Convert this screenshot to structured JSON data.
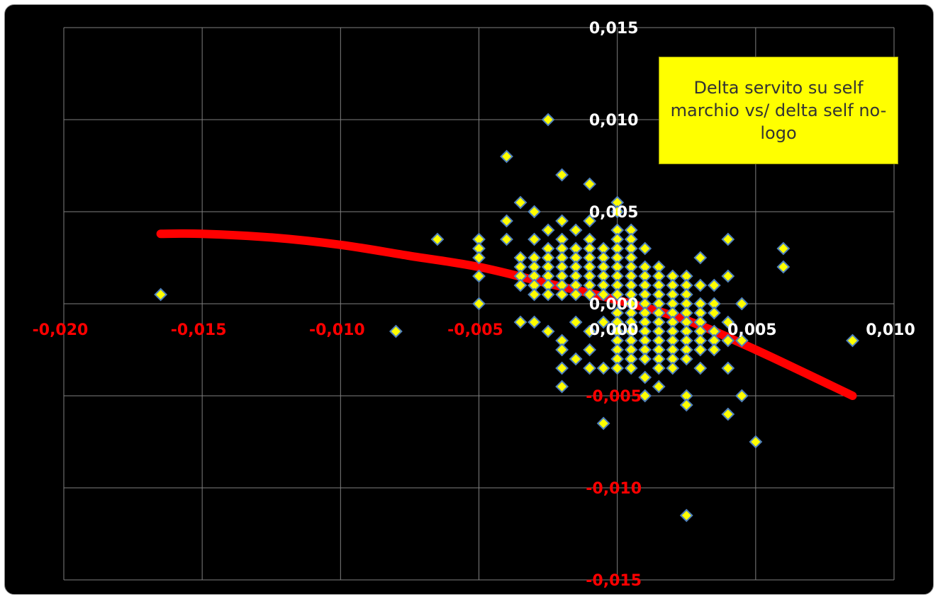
{
  "chart_data": {
    "type": "scatter",
    "title": "",
    "xlabel": "",
    "ylabel": "",
    "xlim": [
      -0.02,
      0.01
    ],
    "ylim": [
      -0.015,
      0.015
    ],
    "grid": true,
    "x_ticks": [
      -0.02,
      -0.015,
      -0.01,
      -0.005,
      0.0,
      0.005,
      0.01
    ],
    "x_tick_labels": [
      "-0,020",
      "-0,015",
      "-0,010",
      "-0,005",
      "0,000",
      "0,005",
      "0,010"
    ],
    "y_ticks": [
      0.015,
      0.01,
      0.005,
      0.0,
      -0.005,
      -0.01,
      -0.015
    ],
    "y_tick_labels": [
      "0,015",
      "0,010",
      "0,005",
      "0,000",
      "-0,005",
      "-0,010",
      "-0,015"
    ],
    "annotation": "Delta servito su self marchio vs/ delta self no-logo",
    "colors": {
      "background": "#000000",
      "grid": "#7f7f7f",
      "marker_fill": "#ffff00",
      "marker_edge": "#4f81bd",
      "trend": "#ff0000",
      "x_tick_positive": "#ffffff",
      "x_tick_negative": "#ff0000",
      "y_tick_positive": "#ffffff",
      "y_tick_negative": "#ff0000",
      "annotation_bg": "#ffff00"
    },
    "trendline": {
      "type": "polynomial",
      "points": [
        [
          -0.0165,
          0.0038
        ],
        [
          -0.015,
          0.0038
        ],
        [
          -0.0125,
          0.0036
        ],
        [
          -0.01,
          0.0032
        ],
        [
          -0.0075,
          0.0026
        ],
        [
          -0.005,
          0.002
        ],
        [
          -0.0025,
          0.0011
        ],
        [
          0.0,
          0.0002
        ],
        [
          0.0025,
          -0.0009
        ],
        [
          0.005,
          -0.0025
        ],
        [
          0.0085,
          -0.005
        ]
      ]
    },
    "points": [
      [
        -0.0165,
        0.0005
      ],
      [
        -0.008,
        -0.0015
      ],
      [
        -0.0065,
        0.0035
      ],
      [
        -0.005,
        0.0035
      ],
      [
        -0.005,
        0.003
      ],
      [
        -0.005,
        0.0025
      ],
      [
        -0.005,
        0.0015
      ],
      [
        -0.005,
        0.0
      ],
      [
        -0.004,
        0.008
      ],
      [
        -0.004,
        0.0045
      ],
      [
        -0.004,
        0.0035
      ],
      [
        -0.0035,
        0.0055
      ],
      [
        -0.0035,
        0.0025
      ],
      [
        -0.0035,
        0.002
      ],
      [
        -0.0035,
        0.0015
      ],
      [
        -0.0035,
        0.001
      ],
      [
        -0.0035,
        -0.001
      ],
      [
        -0.003,
        0.005
      ],
      [
        -0.003,
        0.0035
      ],
      [
        -0.003,
        0.0025
      ],
      [
        -0.003,
        0.002
      ],
      [
        -0.003,
        0.0015
      ],
      [
        -0.003,
        0.001
      ],
      [
        -0.003,
        0.0005
      ],
      [
        -0.003,
        -0.001
      ],
      [
        -0.0025,
        0.01
      ],
      [
        -0.0025,
        0.004
      ],
      [
        -0.0025,
        0.003
      ],
      [
        -0.0025,
        0.0025
      ],
      [
        -0.0025,
        0.002
      ],
      [
        -0.0025,
        0.0015
      ],
      [
        -0.0025,
        0.001
      ],
      [
        -0.0025,
        0.0005
      ],
      [
        -0.0025,
        -0.0015
      ],
      [
        -0.002,
        0.007
      ],
      [
        -0.002,
        0.0045
      ],
      [
        -0.002,
        0.0035
      ],
      [
        -0.002,
        0.003
      ],
      [
        -0.002,
        0.0025
      ],
      [
        -0.002,
        0.002
      ],
      [
        -0.002,
        0.0015
      ],
      [
        -0.002,
        0.001
      ],
      [
        -0.002,
        0.0005
      ],
      [
        -0.002,
        -0.002
      ],
      [
        -0.002,
        -0.0025
      ],
      [
        -0.002,
        -0.0035
      ],
      [
        -0.002,
        -0.0045
      ],
      [
        -0.0015,
        0.004
      ],
      [
        -0.0015,
        0.003
      ],
      [
        -0.0015,
        0.0025
      ],
      [
        -0.0015,
        0.002
      ],
      [
        -0.0015,
        0.0015
      ],
      [
        -0.0015,
        0.001
      ],
      [
        -0.0015,
        0.0005
      ],
      [
        -0.0015,
        -0.001
      ],
      [
        -0.0015,
        -0.003
      ],
      [
        -0.001,
        0.0065
      ],
      [
        -0.001,
        0.0045
      ],
      [
        -0.001,
        0.0035
      ],
      [
        -0.001,
        0.003
      ],
      [
        -0.001,
        0.0025
      ],
      [
        -0.001,
        0.002
      ],
      [
        -0.001,
        0.0015
      ],
      [
        -0.001,
        0.001
      ],
      [
        -0.001,
        0.0005
      ],
      [
        -0.001,
        -0.0015
      ],
      [
        -0.001,
        -0.0025
      ],
      [
        -0.001,
        -0.0035
      ],
      [
        -0.0005,
        0.003
      ],
      [
        -0.0005,
        0.0025
      ],
      [
        -0.0005,
        0.002
      ],
      [
        -0.0005,
        0.0015
      ],
      [
        -0.0005,
        0.001
      ],
      [
        -0.0005,
        0.0005
      ],
      [
        -0.0005,
        -0.001
      ],
      [
        -0.0005,
        -0.0035
      ],
      [
        -0.0005,
        -0.0065
      ],
      [
        0.0,
        0.0055
      ],
      [
        0.0,
        0.005
      ],
      [
        0.0,
        0.004
      ],
      [
        0.0,
        0.0035
      ],
      [
        0.0,
        0.003
      ],
      [
        0.0,
        0.0025
      ],
      [
        0.0,
        0.002
      ],
      [
        0.0,
        0.0015
      ],
      [
        0.0,
        0.001
      ],
      [
        0.0,
        0.0005
      ],
      [
        0.0,
        -0.0005
      ],
      [
        0.0,
        -0.001
      ],
      [
        0.0,
        -0.0015
      ],
      [
        0.0,
        -0.002
      ],
      [
        0.0,
        -0.0025
      ],
      [
        0.0,
        -0.003
      ],
      [
        0.0,
        -0.0035
      ],
      [
        0.0005,
        0.004
      ],
      [
        0.0005,
        0.0035
      ],
      [
        0.0005,
        0.003
      ],
      [
        0.0005,
        0.0025
      ],
      [
        0.0005,
        0.002
      ],
      [
        0.0005,
        0.0015
      ],
      [
        0.0005,
        0.001
      ],
      [
        0.0005,
        0.0005
      ],
      [
        0.0005,
        0.0
      ],
      [
        0.0005,
        -0.0005
      ],
      [
        0.0005,
        -0.001
      ],
      [
        0.0005,
        -0.0015
      ],
      [
        0.0005,
        -0.002
      ],
      [
        0.0005,
        -0.0025
      ],
      [
        0.0005,
        -0.003
      ],
      [
        0.0005,
        -0.0035
      ],
      [
        0.001,
        0.003
      ],
      [
        0.001,
        0.002
      ],
      [
        0.001,
        0.0015
      ],
      [
        0.001,
        0.001
      ],
      [
        0.001,
        0.0005
      ],
      [
        0.001,
        0.0
      ],
      [
        0.001,
        -0.0005
      ],
      [
        0.001,
        -0.001
      ],
      [
        0.001,
        -0.0015
      ],
      [
        0.001,
        -0.002
      ],
      [
        0.001,
        -0.0025
      ],
      [
        0.001,
        -0.003
      ],
      [
        0.001,
        -0.004
      ],
      [
        0.001,
        -0.005
      ],
      [
        0.0015,
        0.002
      ],
      [
        0.0015,
        0.0015
      ],
      [
        0.0015,
        0.001
      ],
      [
        0.0015,
        0.0005
      ],
      [
        0.0015,
        0.0
      ],
      [
        0.0015,
        -0.0005
      ],
      [
        0.0015,
        -0.001
      ],
      [
        0.0015,
        -0.0015
      ],
      [
        0.0015,
        -0.002
      ],
      [
        0.0015,
        -0.0025
      ],
      [
        0.0015,
        -0.003
      ],
      [
        0.0015,
        -0.0035
      ],
      [
        0.0015,
        -0.0045
      ],
      [
        0.002,
        0.0015
      ],
      [
        0.002,
        0.001
      ],
      [
        0.002,
        0.0005
      ],
      [
        0.002,
        0.0
      ],
      [
        0.002,
        -0.0005
      ],
      [
        0.002,
        -0.001
      ],
      [
        0.002,
        -0.0015
      ],
      [
        0.002,
        -0.002
      ],
      [
        0.002,
        -0.0025
      ],
      [
        0.002,
        -0.003
      ],
      [
        0.002,
        -0.0035
      ],
      [
        0.0025,
        0.0015
      ],
      [
        0.0025,
        0.001
      ],
      [
        0.0025,
        0.0005
      ],
      [
        0.0025,
        0.0
      ],
      [
        0.0025,
        -0.0005
      ],
      [
        0.0025,
        -0.001
      ],
      [
        0.0025,
        -0.0015
      ],
      [
        0.0025,
        -0.002
      ],
      [
        0.0025,
        -0.0025
      ],
      [
        0.0025,
        -0.003
      ],
      [
        0.0025,
        -0.005
      ],
      [
        0.0025,
        -0.0055
      ],
      [
        0.0025,
        -0.0115
      ],
      [
        0.003,
        0.0025
      ],
      [
        0.003,
        0.001
      ],
      [
        0.003,
        0.0
      ],
      [
        0.003,
        -0.0005
      ],
      [
        0.003,
        -0.001
      ],
      [
        0.003,
        -0.0015
      ],
      [
        0.003,
        -0.002
      ],
      [
        0.003,
        -0.0025
      ],
      [
        0.003,
        -0.0035
      ],
      [
        0.0035,
        0.001
      ],
      [
        0.0035,
        0.0
      ],
      [
        0.0035,
        -0.0005
      ],
      [
        0.0035,
        -0.0015
      ],
      [
        0.0035,
        -0.002
      ],
      [
        0.0035,
        -0.0025
      ],
      [
        0.004,
        0.0035
      ],
      [
        0.004,
        0.0015
      ],
      [
        0.004,
        -0.001
      ],
      [
        0.004,
        -0.002
      ],
      [
        0.004,
        -0.0035
      ],
      [
        0.004,
        -0.006
      ],
      [
        0.0045,
        0.0
      ],
      [
        0.0045,
        -0.002
      ],
      [
        0.0045,
        -0.005
      ],
      [
        0.005,
        -0.0075
      ],
      [
        0.006,
        0.003
      ],
      [
        0.006,
        0.002
      ],
      [
        0.0085,
        -0.002
      ]
    ]
  }
}
